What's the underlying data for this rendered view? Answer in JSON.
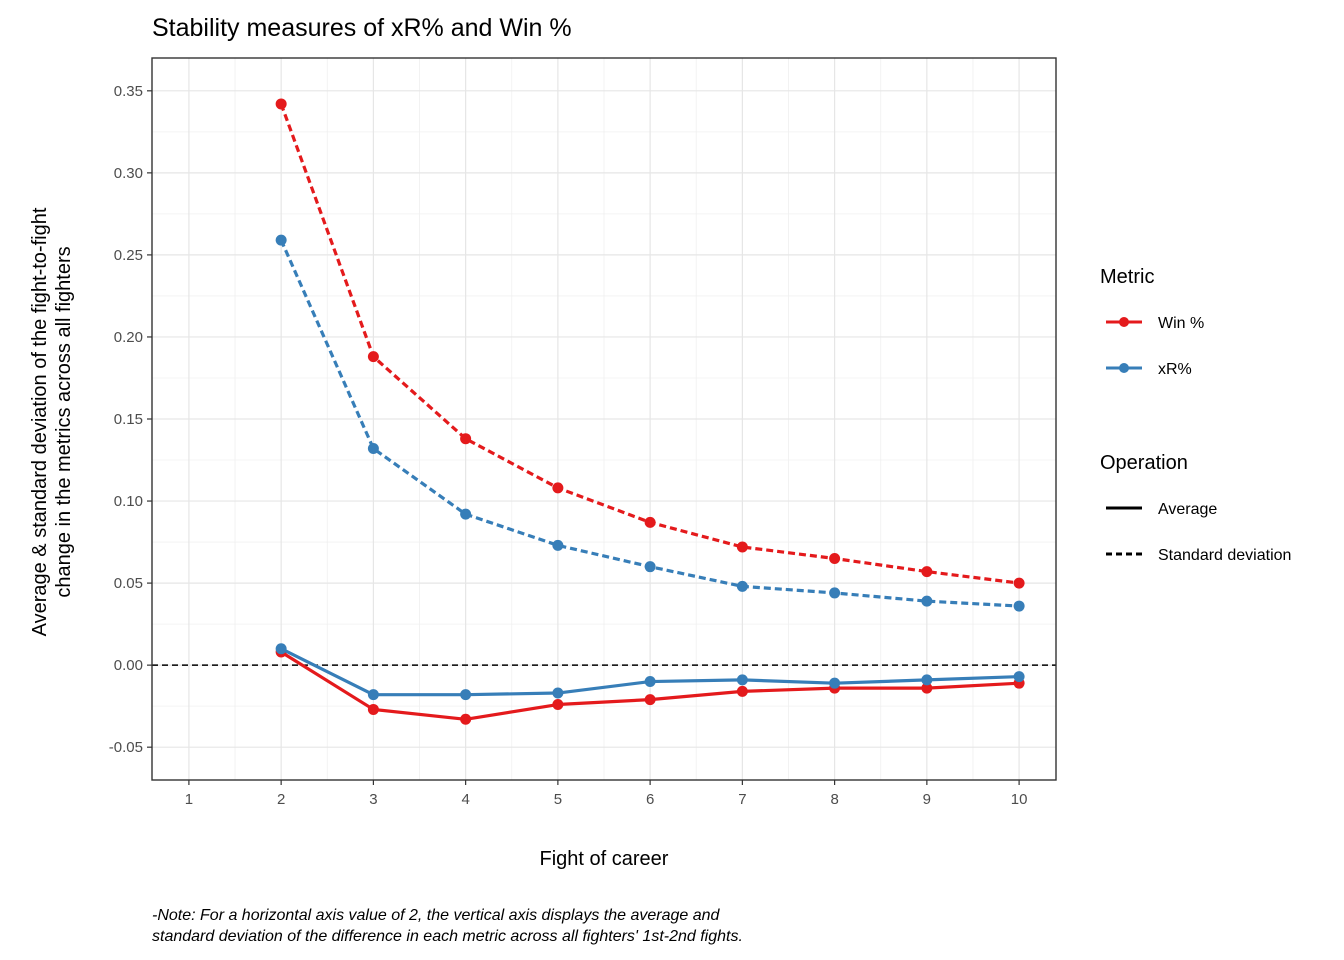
{
  "chart_data": {
    "type": "line",
    "title": "Stability measures of xR% and Win %",
    "xlabel": "Fight of career",
    "ylabel_lines": [
      "Average & standard deviation of the fight-to-fight",
      "change in the metrics across all fighters"
    ],
    "note_lines": [
      "-Note: For a horizontal axis value of 2, the vertical axis displays the average and",
      "standard deviation of the difference in each metric across all fighters' 1st-2nd fights."
    ],
    "x_ticks": [
      "1",
      "2",
      "3",
      "4",
      "5",
      "6",
      "7",
      "8",
      "9",
      "10"
    ],
    "y_ticks": [
      "-0.05",
      "0.00",
      "0.05",
      "0.10",
      "0.15",
      "0.20",
      "0.25",
      "0.30",
      "0.35"
    ],
    "xlim": [
      0.6,
      10.4
    ],
    "ylim": [
      -0.07,
      0.37
    ],
    "grid": true,
    "reference_line_y": 0,
    "legend": {
      "placement": "right",
      "metric_title": "Metric",
      "metric_items": [
        {
          "label": "Win %",
          "color": "#e41a1c"
        },
        {
          "label": "xR%",
          "color": "#377eb8"
        }
      ],
      "operation_title": "Operation",
      "operation_items": [
        {
          "label": "Average",
          "style": "solid"
        },
        {
          "label": "Standard deviation",
          "style": "dashed"
        }
      ]
    },
    "series": [
      {
        "metric": "Win %",
        "operation": "Standard deviation",
        "color": "#e41a1c",
        "style": "dashed",
        "x": [
          2,
          3,
          4,
          5,
          6,
          7,
          8,
          9,
          10
        ],
        "y": [
          0.342,
          0.188,
          0.138,
          0.108,
          0.087,
          0.072,
          0.065,
          0.057,
          0.05
        ]
      },
      {
        "metric": "xR%",
        "operation": "Standard deviation",
        "color": "#377eb8",
        "style": "dashed",
        "x": [
          2,
          3,
          4,
          5,
          6,
          7,
          8,
          9,
          10
        ],
        "y": [
          0.259,
          0.132,
          0.092,
          0.073,
          0.06,
          0.048,
          0.044,
          0.039,
          0.036
        ]
      },
      {
        "metric": "Win %",
        "operation": "Average",
        "color": "#e41a1c",
        "style": "solid",
        "x": [
          2,
          3,
          4,
          5,
          6,
          7,
          8,
          9,
          10
        ],
        "y": [
          0.008,
          -0.027,
          -0.033,
          -0.024,
          -0.021,
          -0.016,
          -0.014,
          -0.014,
          -0.011
        ]
      },
      {
        "metric": "xR%",
        "operation": "Average",
        "color": "#377eb8",
        "style": "solid",
        "x": [
          2,
          3,
          4,
          5,
          6,
          7,
          8,
          9,
          10
        ],
        "y": [
          0.01,
          -0.018,
          -0.018,
          -0.017,
          -0.01,
          -0.009,
          -0.011,
          -0.009,
          -0.007
        ]
      }
    ]
  }
}
